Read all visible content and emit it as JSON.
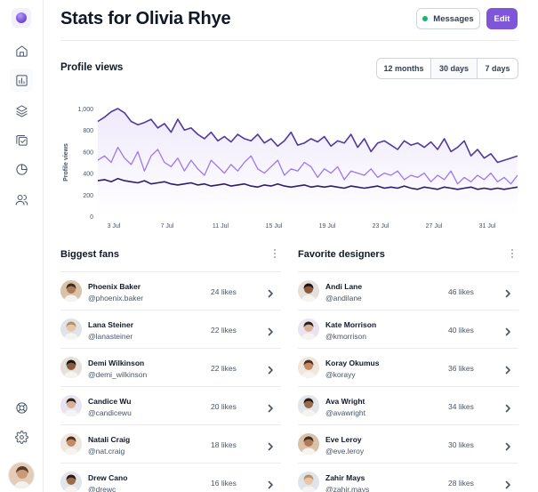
{
  "page": {
    "title": "Stats for Olivia Rhye"
  },
  "header": {
    "messages_label": "Messages",
    "edit_label": "Edit"
  },
  "sidebar": {
    "items": [
      {
        "icon": "home-icon",
        "active": false
      },
      {
        "icon": "bar-chart-icon",
        "active": true
      },
      {
        "icon": "layers-icon",
        "active": false
      },
      {
        "icon": "check-square-icon",
        "active": false
      },
      {
        "icon": "pie-chart-icon",
        "active": false
      },
      {
        "icon": "users-icon",
        "active": false
      }
    ],
    "footer_items": [
      {
        "icon": "support-icon"
      },
      {
        "icon": "settings-icon"
      }
    ]
  },
  "profile_views": {
    "title": "Profile views",
    "ranges": [
      "12 months",
      "30 days",
      "7 days"
    ],
    "selected_range": "30 days"
  },
  "chart_data": {
    "type": "line",
    "ylabel": "Profile views",
    "ylim": [
      0,
      1000
    ],
    "yticks": [
      "0",
      "200",
      "400",
      "600",
      "800",
      "1,000"
    ],
    "xticks": [
      "3 Jul",
      "7 Jul",
      "11 Jul",
      "15 Jul",
      "19 Jul",
      "23 Jul",
      "27 Jul",
      "31 Jul"
    ],
    "series": [
      {
        "color": "#53389e",
        "values": [
          880,
          920,
          970,
          1000,
          960,
          880,
          850,
          870,
          900,
          820,
          860,
          780,
          900,
          800,
          820,
          760,
          720,
          780,
          700,
          740,
          690,
          760,
          720,
          700,
          760,
          680,
          720,
          650,
          700,
          780,
          660,
          680,
          720,
          690,
          740,
          650,
          700,
          680,
          760,
          640,
          720,
          600,
          680,
          700,
          660,
          620,
          700,
          660,
          680,
          640,
          690,
          620,
          720,
          600,
          640,
          700,
          560,
          620,
          540,
          580,
          500,
          520,
          540,
          560
        ]
      },
      {
        "color": "#9e77ed",
        "values": [
          520,
          560,
          500,
          640,
          540,
          480,
          600,
          420,
          560,
          620,
          500,
          460,
          540,
          420,
          520,
          440,
          380,
          520,
          460,
          400,
          480,
          420,
          500,
          560,
          440,
          400,
          460,
          520,
          380,
          440,
          420,
          500,
          460,
          360,
          440,
          400,
          460,
          340,
          420,
          400,
          380,
          440,
          360,
          400,
          380,
          420,
          340,
          380,
          360,
          400,
          320,
          380,
          340,
          420,
          300,
          360,
          320,
          380,
          340,
          400,
          320,
          360,
          300,
          380
        ]
      },
      {
        "color": "#2e1d6d",
        "values": [
          330,
          340,
          320,
          350,
          330,
          320,
          310,
          330,
          300,
          310,
          320,
          300,
          290,
          300,
          310,
          290,
          300,
          280,
          290,
          300,
          280,
          290,
          300,
          280,
          270,
          290,
          280,
          300,
          280,
          270,
          280,
          290,
          270,
          280,
          270,
          280,
          270,
          260,
          280,
          270,
          260,
          270,
          280,
          260,
          270,
          260,
          280,
          260,
          250,
          270,
          260,
          250,
          270,
          260,
          250,
          260,
          270,
          250,
          260,
          250,
          260,
          250,
          260,
          270
        ]
      }
    ]
  },
  "biggest_fans": {
    "title": "Biggest fans",
    "rows": [
      {
        "name": "Phoenix Baker",
        "handle": "@phoenix.baker",
        "likes": "24 likes"
      },
      {
        "name": "Lana Steiner",
        "handle": "@lanasteiner",
        "likes": "22 likes"
      },
      {
        "name": "Demi Wilkinson",
        "handle": "@demi_wilkinson",
        "likes": "22 likes"
      },
      {
        "name": "Candice Wu",
        "handle": "@candicewu",
        "likes": "20 likes"
      },
      {
        "name": "Natali Craig",
        "handle": "@nat.craig",
        "likes": "18 likes"
      },
      {
        "name": "Drew Cano",
        "handle": "@drewc",
        "likes": "16 likes"
      }
    ]
  },
  "favorite_designers": {
    "title": "Favorite designers",
    "rows": [
      {
        "name": "Andi Lane",
        "handle": "@andilane",
        "likes": "46 likes"
      },
      {
        "name": "Kate Morrison",
        "handle": "@kmorrison",
        "likes": "40 likes"
      },
      {
        "name": "Koray Okumus",
        "handle": "@korayy",
        "likes": "36 likes"
      },
      {
        "name": "Ava Wright",
        "handle": "@avawright",
        "likes": "34 likes"
      },
      {
        "name": "Eve Leroy",
        "handle": "@eve.leroy",
        "likes": "30 likes"
      },
      {
        "name": "Zahir Mays",
        "handle": "@zahir.mays",
        "likes": "28 likes"
      }
    ]
  }
}
